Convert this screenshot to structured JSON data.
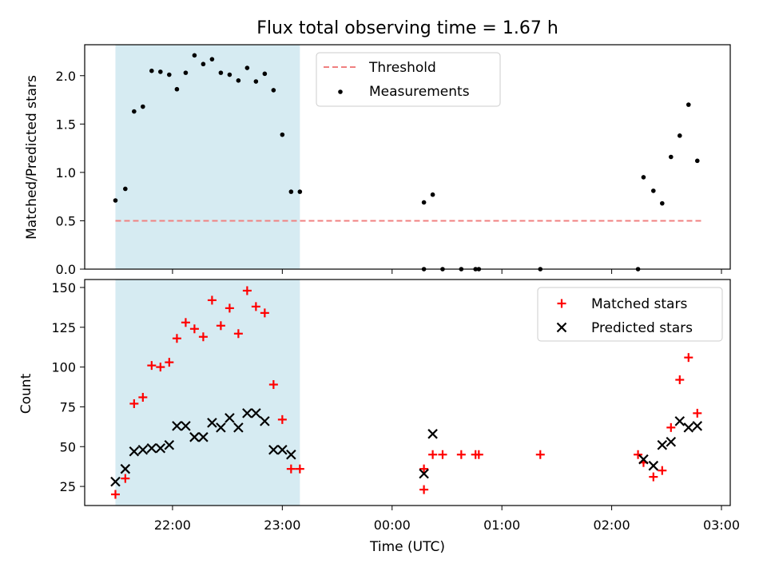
{
  "chart_data": [
    {
      "type": "scatter",
      "title": "Flux total observing time = 1.67 h",
      "xlabel": "",
      "ylabel": "Matched/Predicted stars",
      "ylim": [
        0,
        2.32
      ],
      "yticks": [
        "0.0",
        "0.5",
        "1.0",
        "1.5",
        "2.0"
      ],
      "yticks_values": [
        0,
        0.5,
        1.0,
        1.5,
        2.0
      ],
      "shaded_span_hours": [
        -2.52,
        -0.84
      ],
      "shade_color": "#add8e6",
      "legend_position": "upper-center",
      "series": [
        {
          "name": "Threshold",
          "style": "dashed-line",
          "color": "#f08080",
          "x": [
            -2.52,
            2.83
          ],
          "y": [
            0.5,
            0.5
          ]
        },
        {
          "name": "Measurements",
          "style": "dot",
          "color": "#000000",
          "x": [
            -2.52,
            -2.43,
            -2.35,
            -2.27,
            -2.19,
            -2.11,
            -2.03,
            -1.96,
            -1.88,
            -1.8,
            -1.72,
            -1.64,
            -1.56,
            -1.48,
            -1.4,
            -1.32,
            -1.24,
            -1.16,
            -1.08,
            -1.0,
            -0.92,
            -0.84,
            0.29,
            0.37,
            0.29,
            0.46,
            0.63,
            0.76,
            0.79,
            1.35,
            2.24,
            2.29,
            2.38,
            2.46,
            2.54,
            2.62,
            2.7,
            2.78
          ],
          "y": [
            0.71,
            0.83,
            1.63,
            1.68,
            2.05,
            2.04,
            2.01,
            1.86,
            2.03,
            2.21,
            2.12,
            2.17,
            2.03,
            2.01,
            1.95,
            2.08,
            1.94,
            2.02,
            1.85,
            1.39,
            0.8,
            0.8,
            0.69,
            0.77,
            0.0,
            0.0,
            0.0,
            0.0,
            0.0,
            0.0,
            0.0,
            0.95,
            0.81,
            0.68,
            1.16,
            1.38,
            1.7,
            1.12
          ]
        }
      ]
    },
    {
      "type": "scatter",
      "xlabel": "Time (UTC)",
      "ylabel": "Count",
      "ylim": [
        13,
        155
      ],
      "yticks": [
        "25",
        "50",
        "75",
        "100",
        "125",
        "150"
      ],
      "yticks_values": [
        25,
        50,
        75,
        100,
        125,
        150
      ],
      "xticks": [
        "22:00",
        "23:00",
        "00:00",
        "01:00",
        "02:00",
        "03:00"
      ],
      "xticks_values_hours": [
        -2,
        -1,
        0,
        1,
        2,
        3
      ],
      "xlim_hours": [
        -2.8,
        3.08
      ],
      "shaded_span_hours": [
        -2.52,
        -0.84
      ],
      "shade_color": "#add8e6",
      "legend_position": "upper-right",
      "series": [
        {
          "name": "Matched stars",
          "marker": "plus",
          "color": "#ff0000",
          "x": [
            -2.52,
            -2.43,
            -2.35,
            -2.27,
            -2.19,
            -2.11,
            -2.03,
            -1.96,
            -1.88,
            -1.8,
            -1.72,
            -1.64,
            -1.56,
            -1.48,
            -1.4,
            -1.32,
            -1.24,
            -1.16,
            -1.08,
            -1.0,
            -0.92,
            -0.84,
            0.29,
            0.29,
            0.37,
            0.46,
            0.63,
            0.76,
            0.79,
            1.35,
            2.24,
            2.29,
            2.38,
            2.46,
            2.54,
            2.62,
            2.7,
            2.78
          ],
          "y": [
            20,
            30,
            77,
            81,
            101,
            100,
            103,
            118,
            128,
            124,
            119,
            142,
            126,
            137,
            121,
            148,
            138,
            134,
            89,
            67,
            36,
            36,
            23,
            36,
            45,
            45,
            45,
            45,
            45,
            45,
            45,
            40,
            31,
            35,
            62,
            92,
            106,
            71
          ]
        },
        {
          "name": "Predicted stars",
          "marker": "x",
          "color": "#000000",
          "x": [
            -2.52,
            -2.43,
            -2.35,
            -2.27,
            -2.19,
            -2.11,
            -2.03,
            -1.96,
            -1.88,
            -1.8,
            -1.72,
            -1.64,
            -1.56,
            -1.48,
            -1.4,
            -1.32,
            -1.24,
            -1.16,
            -1.08,
            -1.0,
            -0.92,
            0.29,
            0.37,
            2.29,
            2.38,
            2.46,
            2.54,
            2.62,
            2.7,
            2.78
          ],
          "y": [
            28,
            36,
            47,
            48,
            49,
            49,
            51,
            63,
            63,
            56,
            56,
            65,
            62,
            68,
            62,
            71,
            71,
            66,
            48,
            48,
            45,
            33,
            58,
            42,
            38,
            51,
            53,
            66,
            62,
            63
          ]
        }
      ]
    }
  ]
}
